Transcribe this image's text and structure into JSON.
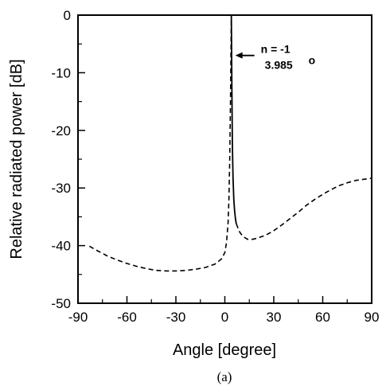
{
  "chart_data": {
    "type": "line",
    "xlabel": "Angle [degree]",
    "ylabel": "Relative radiated power [dB]",
    "xlim": [
      -90,
      90
    ],
    "ylim": [
      -50,
      0
    ],
    "xticks": [
      -90,
      -60,
      -30,
      0,
      30,
      60,
      90
    ],
    "yticks": [
      0,
      -10,
      -20,
      -30,
      -40,
      -50
    ],
    "xtick_labels": [
      "-90",
      "-60",
      "-30",
      "0",
      "30",
      "60",
      "90"
    ],
    "ytick_labels": [
      "0",
      "-10",
      "-20",
      "-30",
      "-40",
      "-50"
    ],
    "grid": false,
    "caption": "(a)",
    "series": [
      {
        "line_style": "dashed",
        "color": "#000000",
        "x": [
          -83,
          -78,
          -72,
          -66,
          -60,
          -54,
          -48,
          -42,
          -36,
          -30,
          -24,
          -18,
          -12,
          -6,
          -2,
          0,
          1,
          2,
          2.5,
          3,
          3.5,
          3.985
        ],
        "y": [
          -40.1,
          -40.9,
          -41.8,
          -42.5,
          -43.1,
          -43.6,
          -44.0,
          -44.3,
          -44.4,
          -44.4,
          -44.3,
          -44.1,
          -43.8,
          -43.2,
          -42.3,
          -41.2,
          -39.5,
          -36.0,
          -32.0,
          -25.0,
          -14.0,
          0
        ]
      },
      {
        "line_style": "solid",
        "color": "#000000",
        "x": [
          3.985,
          4.3,
          4.6,
          5.0,
          5.5,
          6.0,
          6.5,
          7.0
        ],
        "y": [
          0,
          -12,
          -22,
          -28,
          -32,
          -34,
          -35.3,
          -36.2
        ]
      },
      {
        "line_style": "dashed",
        "color": "#000000",
        "x": [
          7.0,
          9,
          11,
          14,
          17,
          20,
          25,
          30,
          35,
          40,
          45,
          50,
          55,
          60,
          65,
          70,
          75,
          80,
          85,
          90
        ],
        "y": [
          -36.2,
          -37.6,
          -38.4,
          -38.9,
          -38.9,
          -38.7,
          -38.2,
          -37.4,
          -36.4,
          -35.3,
          -34.2,
          -33.0,
          -32.0,
          -31.1,
          -30.3,
          -29.6,
          -29.1,
          -28.7,
          -28.5,
          -28.3
        ]
      }
    ],
    "annotation": {
      "line1": "n = -1",
      "line2": "3.985",
      "degree_symbol": "o",
      "x": 3.985,
      "y": -7
    }
  }
}
